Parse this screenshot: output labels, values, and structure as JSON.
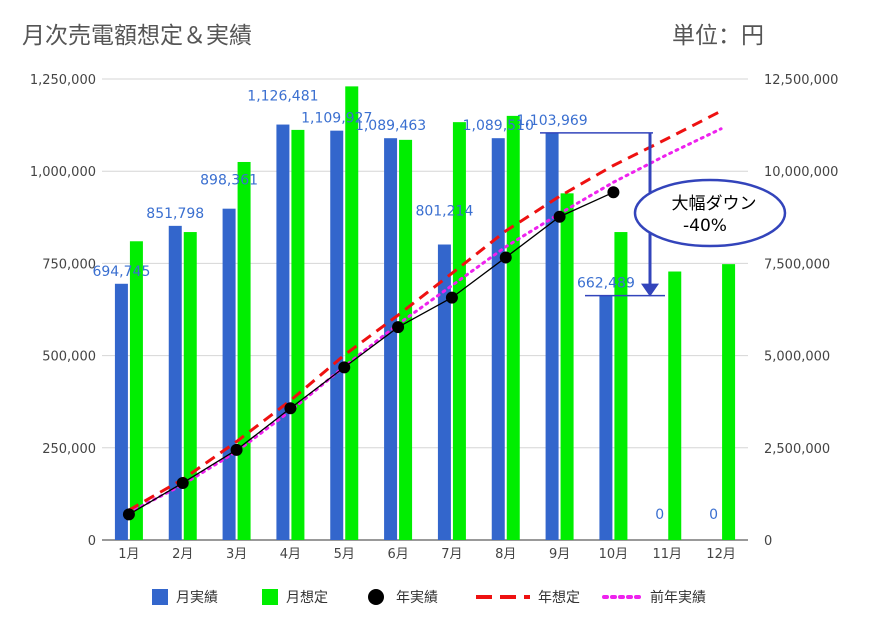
{
  "title": "月次売電額想定＆実績",
  "unit_label": "単位：円",
  "annotation": {
    "line1": "大幅ダウン",
    "line2": "-40%"
  },
  "chart_data": {
    "type": "bar",
    "categories": [
      "1月",
      "2月",
      "3月",
      "4月",
      "5月",
      "6月",
      "7月",
      "8月",
      "9月",
      "10月",
      "11月",
      "12月"
    ],
    "left_axis": {
      "ylim": [
        0,
        1250000
      ],
      "ticks": [
        "0",
        "250,000",
        "500,000",
        "750,000",
        "1,000,000",
        "1,250,000"
      ]
    },
    "right_axis": {
      "ylim": [
        0,
        12500000
      ],
      "ticks": [
        "0",
        "2,500,000",
        "5,000,000",
        "7,500,000",
        "10,000,000",
        "12,500,000"
      ]
    },
    "series": [
      {
        "name": "月実績",
        "kind": "bar",
        "axis": "left",
        "color": "#3366cc",
        "values": [
          694745,
          851798,
          898361,
          1126481,
          1109927,
          1089463,
          801214,
          1089510,
          1103969,
          662489,
          0,
          0
        ],
        "labels": [
          "694,745",
          "851,798",
          "898,361",
          "1,126,481",
          "1,109,927",
          "1,089,463",
          "801,214",
          "1,089,510",
          "1,103,969",
          "662,489",
          "0",
          "0"
        ]
      },
      {
        "name": "月想定",
        "kind": "bar",
        "axis": "left",
        "color": "#00ee00",
        "values": [
          810000,
          835000,
          1025000,
          1112000,
          1230000,
          1085000,
          1133000,
          1150000,
          940000,
          835000,
          728000,
          748000
        ]
      },
      {
        "name": "年実績",
        "kind": "line-markers",
        "axis": "right",
        "color": "#000000",
        "values": [
          694745,
          1546543,
          2444904,
          3571385,
          4681312,
          5770775,
          6571989,
          7661499,
          8765468,
          9427957,
          null,
          null
        ]
      },
      {
        "name": "年想定",
        "kind": "dashed-line",
        "axis": "right",
        "color": "#ee1111",
        "values": [
          810000,
          1645000,
          2670000,
          3782000,
          5012000,
          6097000,
          7230000,
          8380000,
          9320000,
          10155000,
          10883000,
          11631000
        ]
      },
      {
        "name": "前年実績",
        "kind": "dotted-line",
        "axis": "right",
        "color": "#ee22ee",
        "values": [
          740000,
          1500000,
          2400000,
          3500000,
          4700000,
          5850000,
          6900000,
          7950000,
          8850000,
          9700000,
          10450000,
          11150000
        ]
      }
    ],
    "legend_position": "bottom",
    "grid": true
  }
}
